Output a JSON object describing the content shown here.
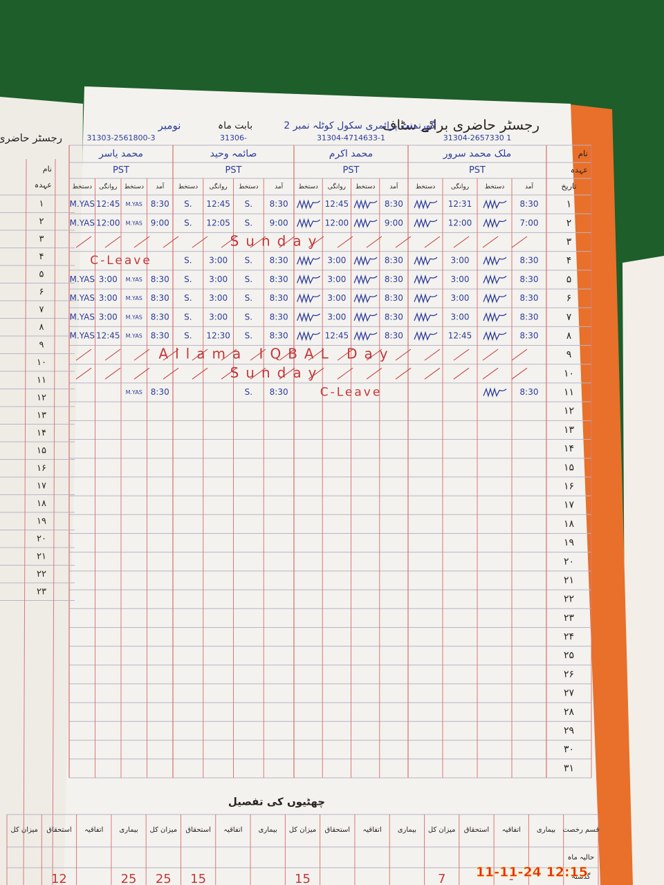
{
  "header": {
    "title": "رجسٹر حاضری برائے سٹاف",
    "school": "گورنمنٹ پرائمری سکول کوٹلہ نمبر 2",
    "month_label": "بابت ماہ",
    "month": "نومبر"
  },
  "row_labels": {
    "name": "نام",
    "designation": "عہدہ",
    "date": "تاریخ"
  },
  "subheaders": [
    "آمد",
    "دستخط",
    "روانگی",
    "دستخط"
  ],
  "staff": [
    {
      "cnic": "31304-2657330 1",
      "name": "ملک محمد سرور",
      "designation": "PST"
    },
    {
      "cnic": "31304-4714633-1",
      "name": "محمد اکرم",
      "designation": "PST"
    },
    {
      "cnic": "31306-",
      "name": "صائمہ وحید",
      "designation": "PST"
    },
    {
      "cnic": "31303-2561800-3",
      "name": "محمد یاسر",
      "designation": "PST"
    }
  ],
  "rows": [
    {
      "day": "۱",
      "entries": [
        {
          "in": "8:30",
          "out": "12:31"
        },
        {
          "in": "8:30",
          "out": "12:45"
        },
        {
          "in": "8:30",
          "out": "12:45",
          "sign": "S."
        },
        {
          "in": "8:30",
          "out": "12:45",
          "sign": "M.YAS"
        }
      ]
    },
    {
      "day": "۲",
      "entries": [
        {
          "in": "7:00",
          "out": "12:00"
        },
        {
          "in": "9:00",
          "out": "12:00"
        },
        {
          "in": "9:00",
          "out": "12:05",
          "sign": "S."
        },
        {
          "in": "9:00",
          "out": "12:00",
          "sign": "M.YAS"
        }
      ]
    },
    {
      "day": "۳",
      "note": "Sunday"
    },
    {
      "day": "۴",
      "entries": [
        {
          "in": "8:30",
          "out": "3:00"
        },
        {
          "in": "8:30",
          "out": "3:00"
        },
        {
          "in": "8:30",
          "out": "3:00",
          "sign": "S."
        },
        {
          "note": "C-Leave"
        }
      ]
    },
    {
      "day": "۵",
      "entries": [
        {
          "in": "8:30",
          "out": "3:00"
        },
        {
          "in": "8:30",
          "out": "3:00"
        },
        {
          "in": "8:30",
          "out": "3:00",
          "sign": "S."
        },
        {
          "in": "8:30",
          "out": "3:00",
          "sign": "M.YAS"
        }
      ]
    },
    {
      "day": "۶",
      "entries": [
        {
          "in": "8:30",
          "out": "3:00"
        },
        {
          "in": "8:30",
          "out": "3:00"
        },
        {
          "in": "8:30",
          "out": "3:00",
          "sign": "S."
        },
        {
          "in": "8:30",
          "out": "3:00",
          "sign": "M.YAS"
        }
      ]
    },
    {
      "day": "۷",
      "entries": [
        {
          "in": "8:30",
          "out": "3:00"
        },
        {
          "in": "8:30",
          "out": "3:00"
        },
        {
          "in": "8:30",
          "out": "3:00",
          "sign": "S."
        },
        {
          "in": "8:30",
          "out": "3:00",
          "sign": "M.YAS"
        }
      ]
    },
    {
      "day": "۸",
      "entries": [
        {
          "in": "8:30",
          "out": "12:45"
        },
        {
          "in": "8:30",
          "out": "12:45"
        },
        {
          "in": "8:30",
          "out": "12:30",
          "sign": "S."
        },
        {
          "in": "8:30",
          "out": "12:45",
          "sign": "M.YAS"
        }
      ]
    },
    {
      "day": "۹",
      "note": "Allama IQBAL Day"
    },
    {
      "day": "۱۰",
      "note": "Sunday"
    },
    {
      "day": "۱۱",
      "entries": [
        {
          "in": "8:30"
        },
        {
          "note": "C-Leave"
        },
        {
          "in": "8:30",
          "sign": "S."
        },
        {
          "in": "8:30",
          "sign": "M.YAS"
        }
      ]
    },
    {
      "day": "۱۲"
    },
    {
      "day": "۱۳"
    },
    {
      "day": "۱۴"
    },
    {
      "day": "۱۵"
    },
    {
      "day": "۱۶"
    },
    {
      "day": "۱۷"
    },
    {
      "day": "۱۸"
    },
    {
      "day": "۱۹"
    },
    {
      "day": "۲۰"
    },
    {
      "day": "۲۱"
    },
    {
      "day": "۲۲"
    },
    {
      "day": "۲۳"
    },
    {
      "day": "۲۴"
    },
    {
      "day": "۲۵"
    },
    {
      "day": "۲۶"
    },
    {
      "day": "۲۷"
    },
    {
      "day": "۲۸"
    },
    {
      "day": "۲۹"
    },
    {
      "day": "۳۰"
    },
    {
      "day": "۳۱"
    }
  ],
  "left_page": {
    "title": "رجسٹر حاضری",
    "labels": [
      "نام",
      "عہدہ"
    ]
  },
  "leave_summary": {
    "title": "چھٹیوں کی تفصیل",
    "headers": [
      "قسم رخصت",
      "بیماری",
      "اتفاقیہ",
      "استحقاق",
      "میزان کل",
      "بیماری",
      "اتفاقیہ",
      "استحقاق",
      "میزان کل",
      "بیماری",
      "اتفاقیہ",
      "استحقاق",
      "میزان کل",
      "بیماری",
      "اتفاقیہ",
      "استحقاق",
      "میزان کل"
    ],
    "row_labels": [
      "حالیہ ماہ",
      "گذشتہ"
    ],
    "values": [
      "-",
      "7",
      "15",
      "15",
      "25",
      "25",
      "12"
    ]
  },
  "timestamp": "11-11-24 12:15"
}
